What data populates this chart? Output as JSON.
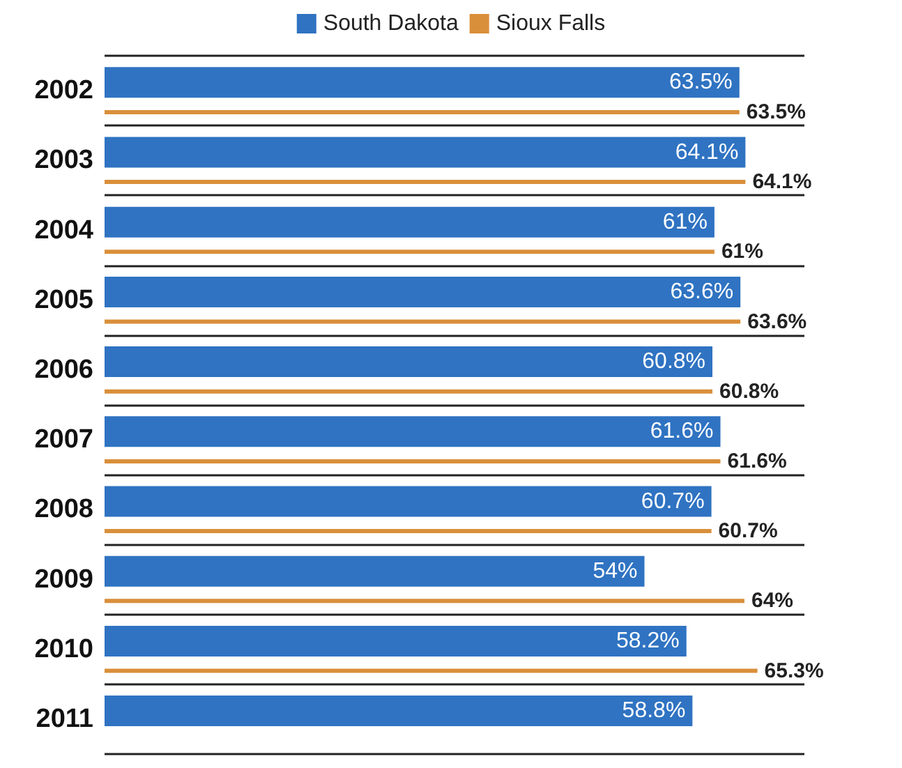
{
  "chart_data": {
    "type": "bar",
    "orientation": "horizontal",
    "categories": [
      "2002",
      "2003",
      "2004",
      "2005",
      "2006",
      "2007",
      "2008",
      "2009",
      "2010",
      "2011"
    ],
    "series": [
      {
        "name": "South Dakota",
        "color": "#2f73c2",
        "values": [
          63.5,
          64.1,
          61,
          63.6,
          60.8,
          61.6,
          60.7,
          54,
          58.2,
          58.8
        ],
        "value_labels": [
          "63.5%",
          "64.1%",
          "61%",
          "63.6%",
          "60.8%",
          "61.6%",
          "60.7%",
          "54%",
          "58.2%",
          "58.8%"
        ]
      },
      {
        "name": "Sioux Falls",
        "color": "#d98f3a",
        "values": [
          63.5,
          64.1,
          61,
          63.6,
          60.8,
          61.6,
          60.7,
          64,
          65.3,
          null
        ],
        "value_labels": [
          "63.5%",
          "64.1%",
          "61%",
          "63.6%",
          "60.8%",
          "61.6%",
          "60.7%",
          "64%",
          "65.3%",
          null
        ]
      }
    ],
    "legend": "top",
    "grid": "y"
  }
}
